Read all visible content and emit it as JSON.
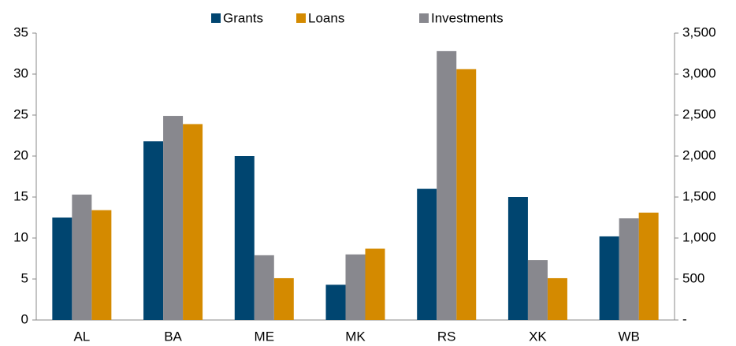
{
  "chart_data": {
    "type": "bar",
    "categories": [
      "AL",
      "BA",
      "ME",
      "MK",
      "RS",
      "XK",
      "WB"
    ],
    "series": [
      {
        "name": "Grants",
        "color": "#004570",
        "values": [
          12.5,
          21.8,
          20,
          4.3,
          16,
          15,
          10.2
        ]
      },
      {
        "name": "Loans",
        "color": "#d48a00",
        "axis": "y2",
        "values": [
          1340,
          2390,
          510,
          870,
          3060,
          510,
          1310
        ]
      },
      {
        "name": "Investments",
        "color": "#88888e",
        "axis": "y2",
        "values": [
          1530,
          2490,
          790,
          800,
          3280,
          730,
          1240
        ]
      }
    ],
    "ylim": [
      0,
      35
    ],
    "yticks": [
      0,
      5,
      10,
      15,
      20,
      25,
      30,
      35
    ],
    "y2lim": [
      0,
      3500
    ],
    "y2ticks": [
      {
        "value": 0,
        "label": "-"
      },
      500,
      {
        "value": 1000,
        "label": "1,000"
      },
      {
        "value": 1500,
        "label": "1,500"
      },
      {
        "value": 2000,
        "label": "2,000"
      },
      {
        "value": 2500,
        "label": "2,500"
      },
      {
        "value": 3000,
        "label": "3,000"
      },
      {
        "value": 3500,
        "label": "3,500"
      }
    ],
    "legend": "top"
  }
}
